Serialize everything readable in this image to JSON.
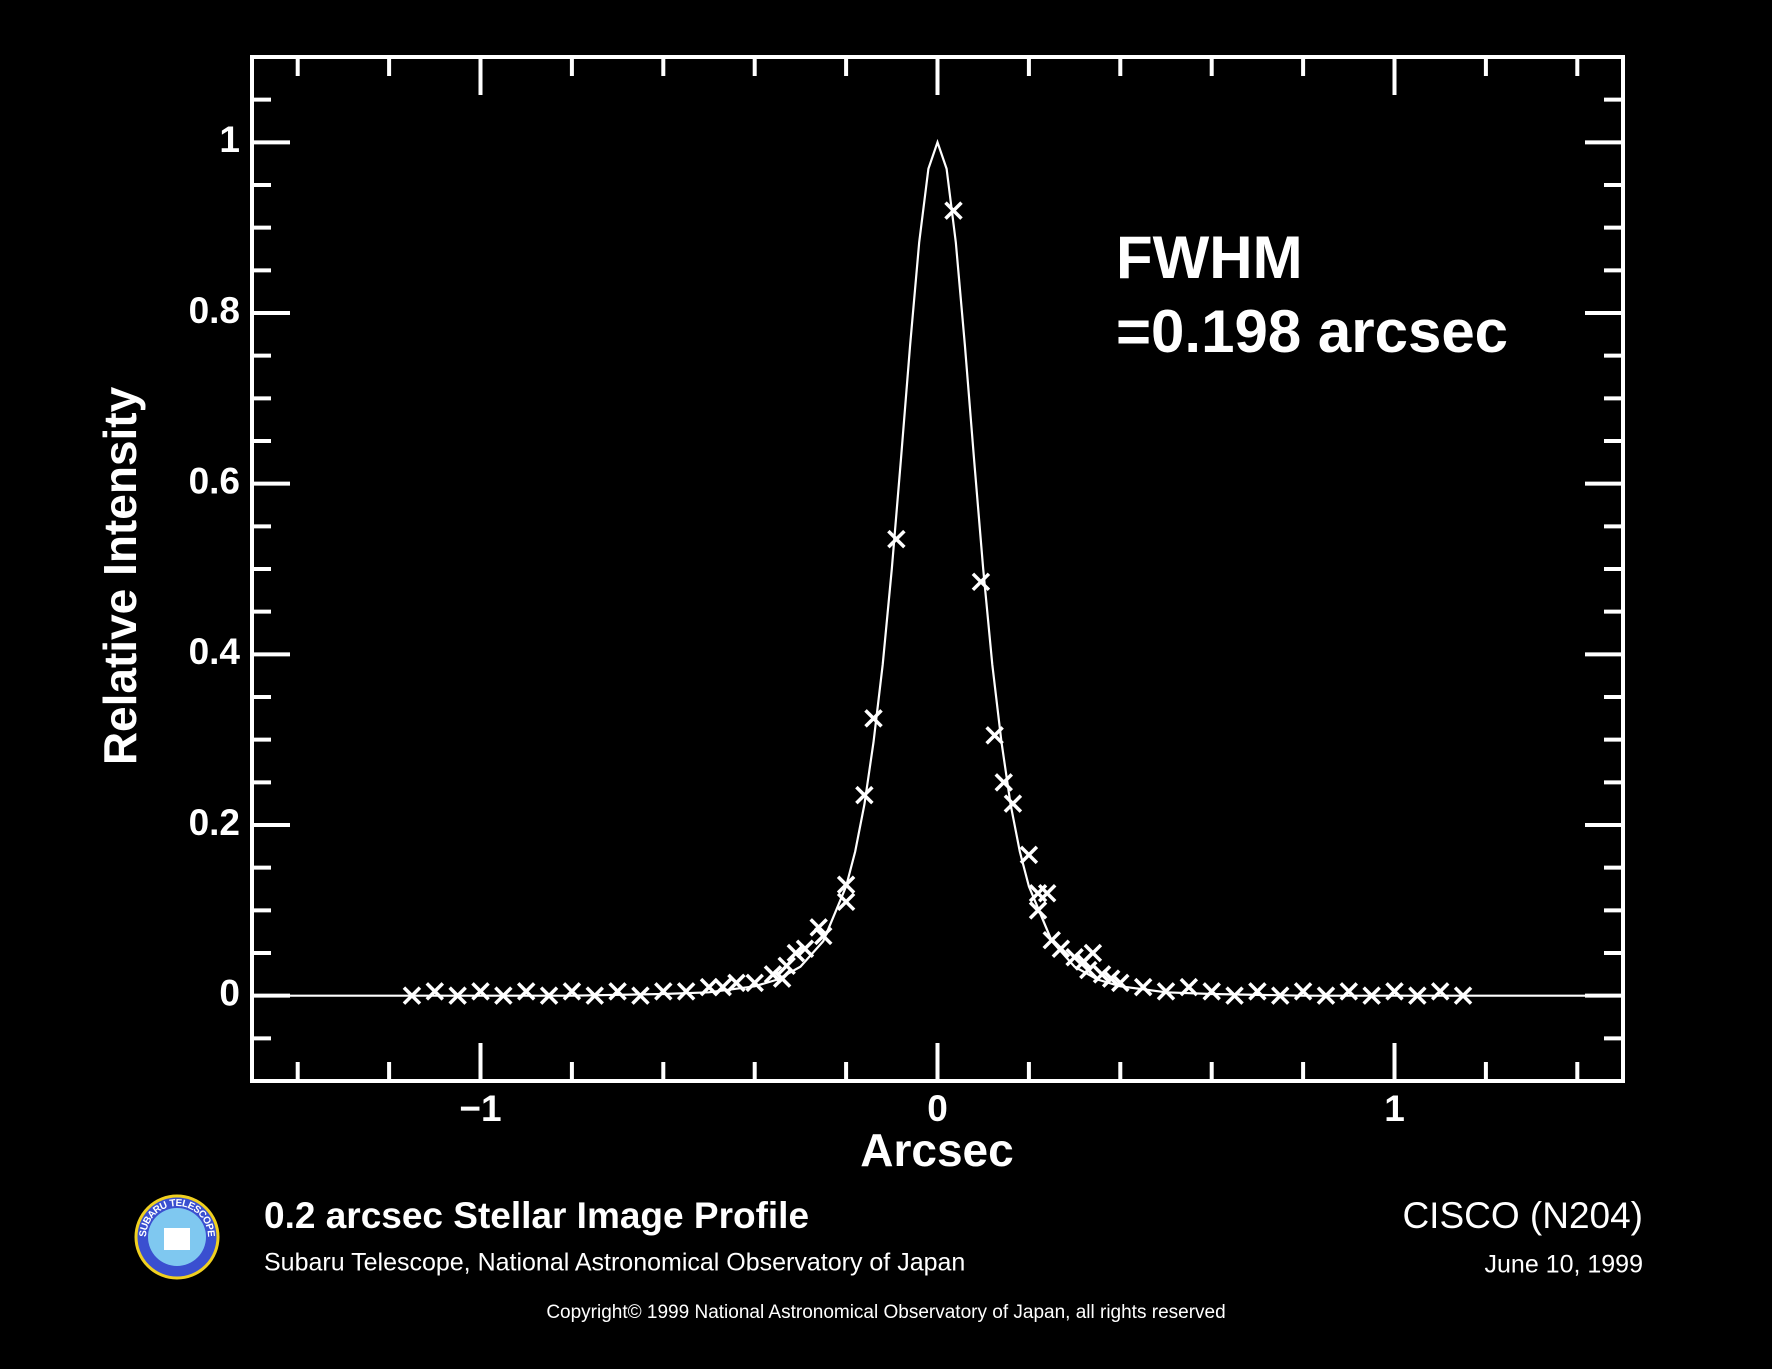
{
  "chart_data": {
    "type": "scatter",
    "xlabel": "Arcsec",
    "ylabel": "Relative Intensity",
    "annotation": [
      "FWHM",
      "=0.198 arcsec"
    ],
    "title": "0.2 arcsec Stellar Image Profile",
    "subtitle": "Subaru Telescope, National Astronomical Observatory of Japan",
    "instrument": "CISCO (N204)",
    "date": "June 10, 1999",
    "copyright": "Copyright© 1999 National Astronomical Observatory of Japan, all rights reserved",
    "logo_text": "SUBARU TELESCOPE",
    "color": "#ffffff",
    "xlim": [
      -1.5,
      1.5
    ],
    "ylim": [
      -0.1,
      1.1
    ],
    "xticks": [
      {
        "value": -1,
        "label": "−1"
      },
      0,
      1
    ],
    "xminorticks": [
      -1.4,
      -1.2,
      -0.8,
      -0.6,
      -0.4,
      -0.2,
      0.2,
      0.4,
      0.6,
      0.8,
      1.2,
      1.4
    ],
    "yticks": [
      0,
      0.2,
      0.4,
      0.6,
      0.8,
      1
    ],
    "yminorticks": [
      -0.05,
      0.05,
      0.1,
      0.15,
      0.25,
      0.3,
      0.35,
      0.45,
      0.5,
      0.55,
      0.65,
      0.7,
      0.75,
      0.85,
      0.9,
      0.95,
      1.05
    ],
    "scatter": {
      "x": [
        0.035,
        -0.09,
        0.095,
        -0.14,
        0.125,
        -0.16,
        0.145,
        0.165,
        0.2,
        -0.2,
        -0.2,
        0.22,
        0.24,
        0.22,
        -0.26,
        -0.25,
        -0.29,
        -0.31,
        -0.33,
        -0.36,
        -0.34,
        0.25,
        0.27,
        0.3,
        0.32,
        0.34,
        0.33,
        0.36,
        0.38,
        0.4,
        -0.4,
        -0.44,
        -0.47,
        -1.15,
        -1.1,
        -1.05,
        -1.0,
        -0.95,
        -0.9,
        -0.85,
        -0.8,
        -0.75,
        -0.7,
        -0.65,
        -0.6,
        -0.55,
        -0.5,
        0.45,
        0.5,
        0.55,
        0.6,
        0.65,
        0.7,
        0.75,
        0.8,
        0.85,
        0.9,
        0.95,
        1.0,
        1.05,
        1.1,
        1.15
      ],
      "y": [
        0.92,
        0.535,
        0.485,
        0.325,
        0.305,
        0.235,
        0.25,
        0.225,
        0.165,
        0.13,
        0.11,
        0.12,
        0.12,
        0.1,
        0.08,
        0.07,
        0.055,
        0.05,
        0.035,
        0.025,
        0.02,
        0.065,
        0.055,
        0.045,
        0.04,
        0.05,
        0.03,
        0.025,
        0.02,
        0.015,
        0.015,
        0.015,
        0.01,
        0,
        0.005,
        0,
        0.005,
        0,
        0.005,
        0,
        0.005,
        0,
        0.005,
        0,
        0.005,
        0.005,
        0.01,
        0.01,
        0.005,
        0.01,
        0.005,
        0,
        0.005,
        0,
        0.005,
        0,
        0.005,
        0,
        0.005,
        0,
        0.005,
        0
      ]
    },
    "curve": {
      "x": [
        -1.5,
        -1.0,
        -0.8,
        -0.6,
        -0.5,
        -0.4,
        -0.35,
        -0.3,
        -0.25,
        -0.2,
        -0.18,
        -0.16,
        -0.14,
        -0.12,
        -0.1,
        -0.08,
        -0.06,
        -0.04,
        -0.02,
        0,
        0.02,
        0.04,
        0.06,
        0.08,
        0.1,
        0.12,
        0.14,
        0.16,
        0.18,
        0.2,
        0.25,
        0.3,
        0.35,
        0.4,
        0.5,
        0.6,
        0.8,
        1.0,
        1.5
      ],
      "y": [
        0,
        0,
        0,
        0.002,
        0.004,
        0.011,
        0.019,
        0.034,
        0.064,
        0.128,
        0.169,
        0.224,
        0.297,
        0.388,
        0.5,
        0.628,
        0.762,
        0.883,
        0.969,
        1,
        0.969,
        0.883,
        0.762,
        0.628,
        0.5,
        0.388,
        0.297,
        0.224,
        0.169,
        0.128,
        0.064,
        0.034,
        0.019,
        0.011,
        0.004,
        0.002,
        0,
        0,
        0
      ]
    }
  }
}
